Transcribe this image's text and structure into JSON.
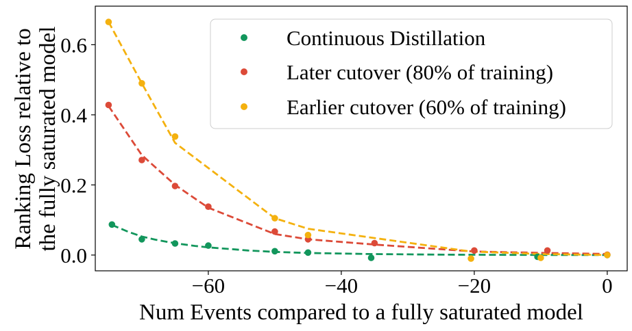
{
  "chart_data": {
    "type": "scatter",
    "title": "",
    "xlabel": "Num Events compared to a fully saturated model",
    "ylabel_lines": [
      "Ranking Loss relative to",
      "the fully saturated model"
    ],
    "xlim": [
      -77,
      3
    ],
    "ylim": [
      -0.045,
      0.71
    ],
    "xticks": [
      -60,
      -40,
      -20,
      0
    ],
    "xtick_labels": [
      "−60",
      "−40",
      "−20",
      "0"
    ],
    "yticks": [
      0.0,
      0.2,
      0.4,
      0.6
    ],
    "ytick_labels": [
      "0.0",
      "0.2",
      "0.4",
      "0.6"
    ],
    "grid": false,
    "legend_position": "top-right",
    "series": [
      {
        "name": "Continuous Distillation",
        "color": "#12965c",
        "points": {
          "x": [
            -74.5,
            -70,
            -65,
            -60,
            -50,
            -45,
            -35.5,
            -10.5,
            0
          ],
          "y": [
            0.087,
            0.045,
            0.033,
            0.027,
            0.011,
            0.007,
            -0.008,
            -0.005,
            0.0
          ]
        },
        "fit": {
          "x": [
            -74.5,
            -72,
            -70,
            -68,
            -66,
            -64,
            -62,
            -60,
            -58,
            -56,
            -54,
            -52,
            -50,
            -47,
            -45,
            -42,
            -39,
            -36,
            -33,
            -30,
            -27,
            -24,
            -20,
            -15,
            -10,
            -5,
            0
          ],
          "y": [
            0.086,
            0.066,
            0.053,
            0.044,
            0.037,
            0.031,
            0.026,
            0.022,
            0.019,
            0.016,
            0.013,
            0.011,
            0.009,
            0.007,
            0.006,
            0.005,
            0.004,
            0.003,
            0.0025,
            0.002,
            0.0015,
            0.001,
            0.0008,
            0.0005,
            0.0003,
            0.0001,
            0.0
          ]
        }
      },
      {
        "name": "Later cutover (80% of training)",
        "color": "#dc4a38",
        "points": {
          "x": [
            -75,
            -70,
            -65,
            -60,
            -50,
            -45,
            -35,
            -20,
            -9,
            0
          ],
          "y": [
            0.428,
            0.271,
            0.197,
            0.138,
            0.067,
            0.045,
            0.034,
            0.013,
            0.013,
            0.001
          ]
        },
        "fit": {
          "x": [
            -75,
            -70,
            -65,
            -60,
            -50,
            -45,
            -35,
            -20,
            -9,
            0
          ],
          "y": [
            0.425,
            0.285,
            0.2,
            0.135,
            0.06,
            0.045,
            0.03,
            0.01,
            0.006,
            0.003
          ]
        }
      },
      {
        "name": "Earlier cutover (60% of training)",
        "color": "#f4b10f",
        "points": {
          "x": [
            -75,
            -70,
            -65,
            -50,
            -45,
            -20.5,
            -10,
            0
          ],
          "y": [
            0.665,
            0.49,
            0.338,
            0.105,
            0.057,
            -0.01,
            -0.008,
            0.0
          ]
        },
        "fit": {
          "x": [
            -75,
            -70,
            -65,
            -50,
            -45,
            -20.5,
            -10,
            0
          ],
          "y": [
            0.665,
            0.49,
            0.32,
            0.105,
            0.075,
            0.01,
            0.003,
            0.0
          ]
        }
      }
    ]
  }
}
